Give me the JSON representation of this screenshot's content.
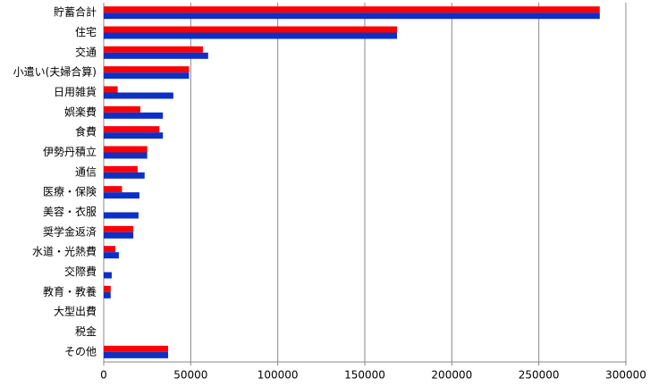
{
  "chart_data": {
    "type": "bar",
    "orientation": "horizontal",
    "categories": [
      "貯蓄合計",
      "住宅",
      "交通",
      "小遣い(夫婦合算)",
      "日用雑貨",
      "娯楽費",
      "食費",
      "伊勢丹積立",
      "通信",
      "医療・保険",
      "美容・衣服",
      "奨学金返済",
      "水道・光熱費",
      "交際費",
      "教育・教養",
      "大型出費",
      "税金",
      "その他"
    ],
    "series": [
      {
        "color": "#ff0000",
        "values": [
          285000,
          168500,
          57000,
          49000,
          8000,
          21000,
          32000,
          25000,
          19500,
          10500,
          0,
          17000,
          6700,
          0,
          4000,
          0,
          0,
          37000
        ]
      },
      {
        "color": "#0d2fc6",
        "values": [
          285000,
          168500,
          60000,
          49000,
          40000,
          34000,
          34000,
          25000,
          23500,
          20500,
          20000,
          17000,
          8700,
          4600,
          4000,
          0,
          0,
          37000
        ]
      }
    ],
    "xlim": [
      0,
      300000
    ],
    "xticks": [
      0,
      50000,
      100000,
      150000,
      200000,
      250000,
      300000
    ],
    "grid": true
  }
}
